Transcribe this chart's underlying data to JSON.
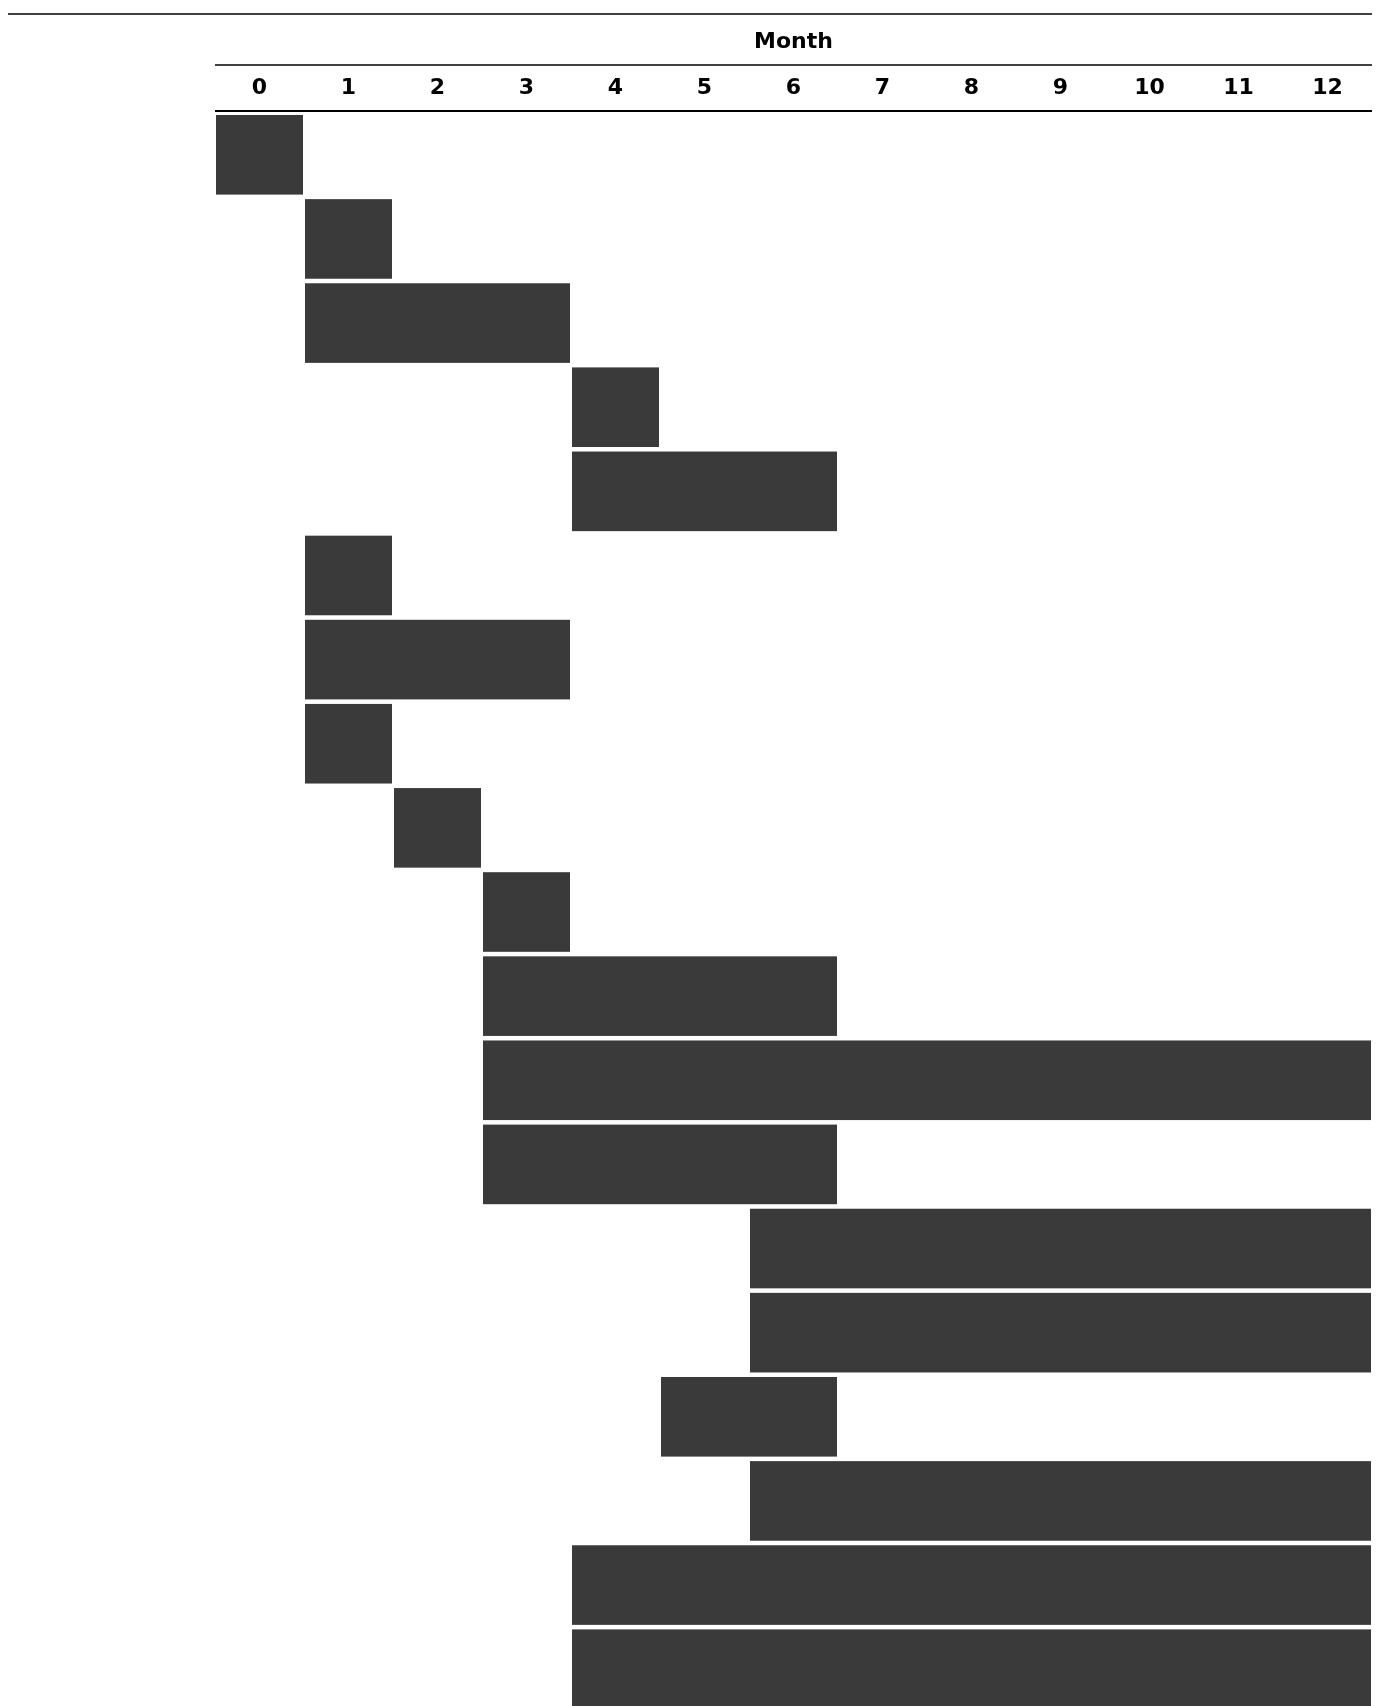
{
  "chart_data": {
    "type": "bar",
    "orientation": "horizontal",
    "xlabel": "Month",
    "categories": [
      null,
      null,
      null,
      null,
      null,
      null,
      null,
      null,
      null,
      null,
      null,
      null,
      null,
      null,
      null,
      null,
      null,
      null,
      null
    ],
    "base": [
      -0.5,
      0.5,
      0.5,
      3.5,
      3.5,
      0.5,
      0.5,
      0.5,
      1.5,
      2.5,
      2.5,
      2.5,
      2.5,
      5.5,
      5.5,
      4.5,
      5.5,
      3.5,
      3.5
    ],
    "values": [
      1,
      1,
      3,
      1,
      3,
      1,
      3,
      1,
      1,
      1,
      4,
      10,
      4,
      7,
      7,
      2,
      7,
      9,
      9
    ],
    "color": "#3a3a3a",
    "xlim": [
      -0.5,
      12.5
    ],
    "xticks": [
      0,
      1,
      2,
      3,
      4,
      5,
      6,
      7,
      8,
      9,
      10,
      11,
      12
    ]
  }
}
